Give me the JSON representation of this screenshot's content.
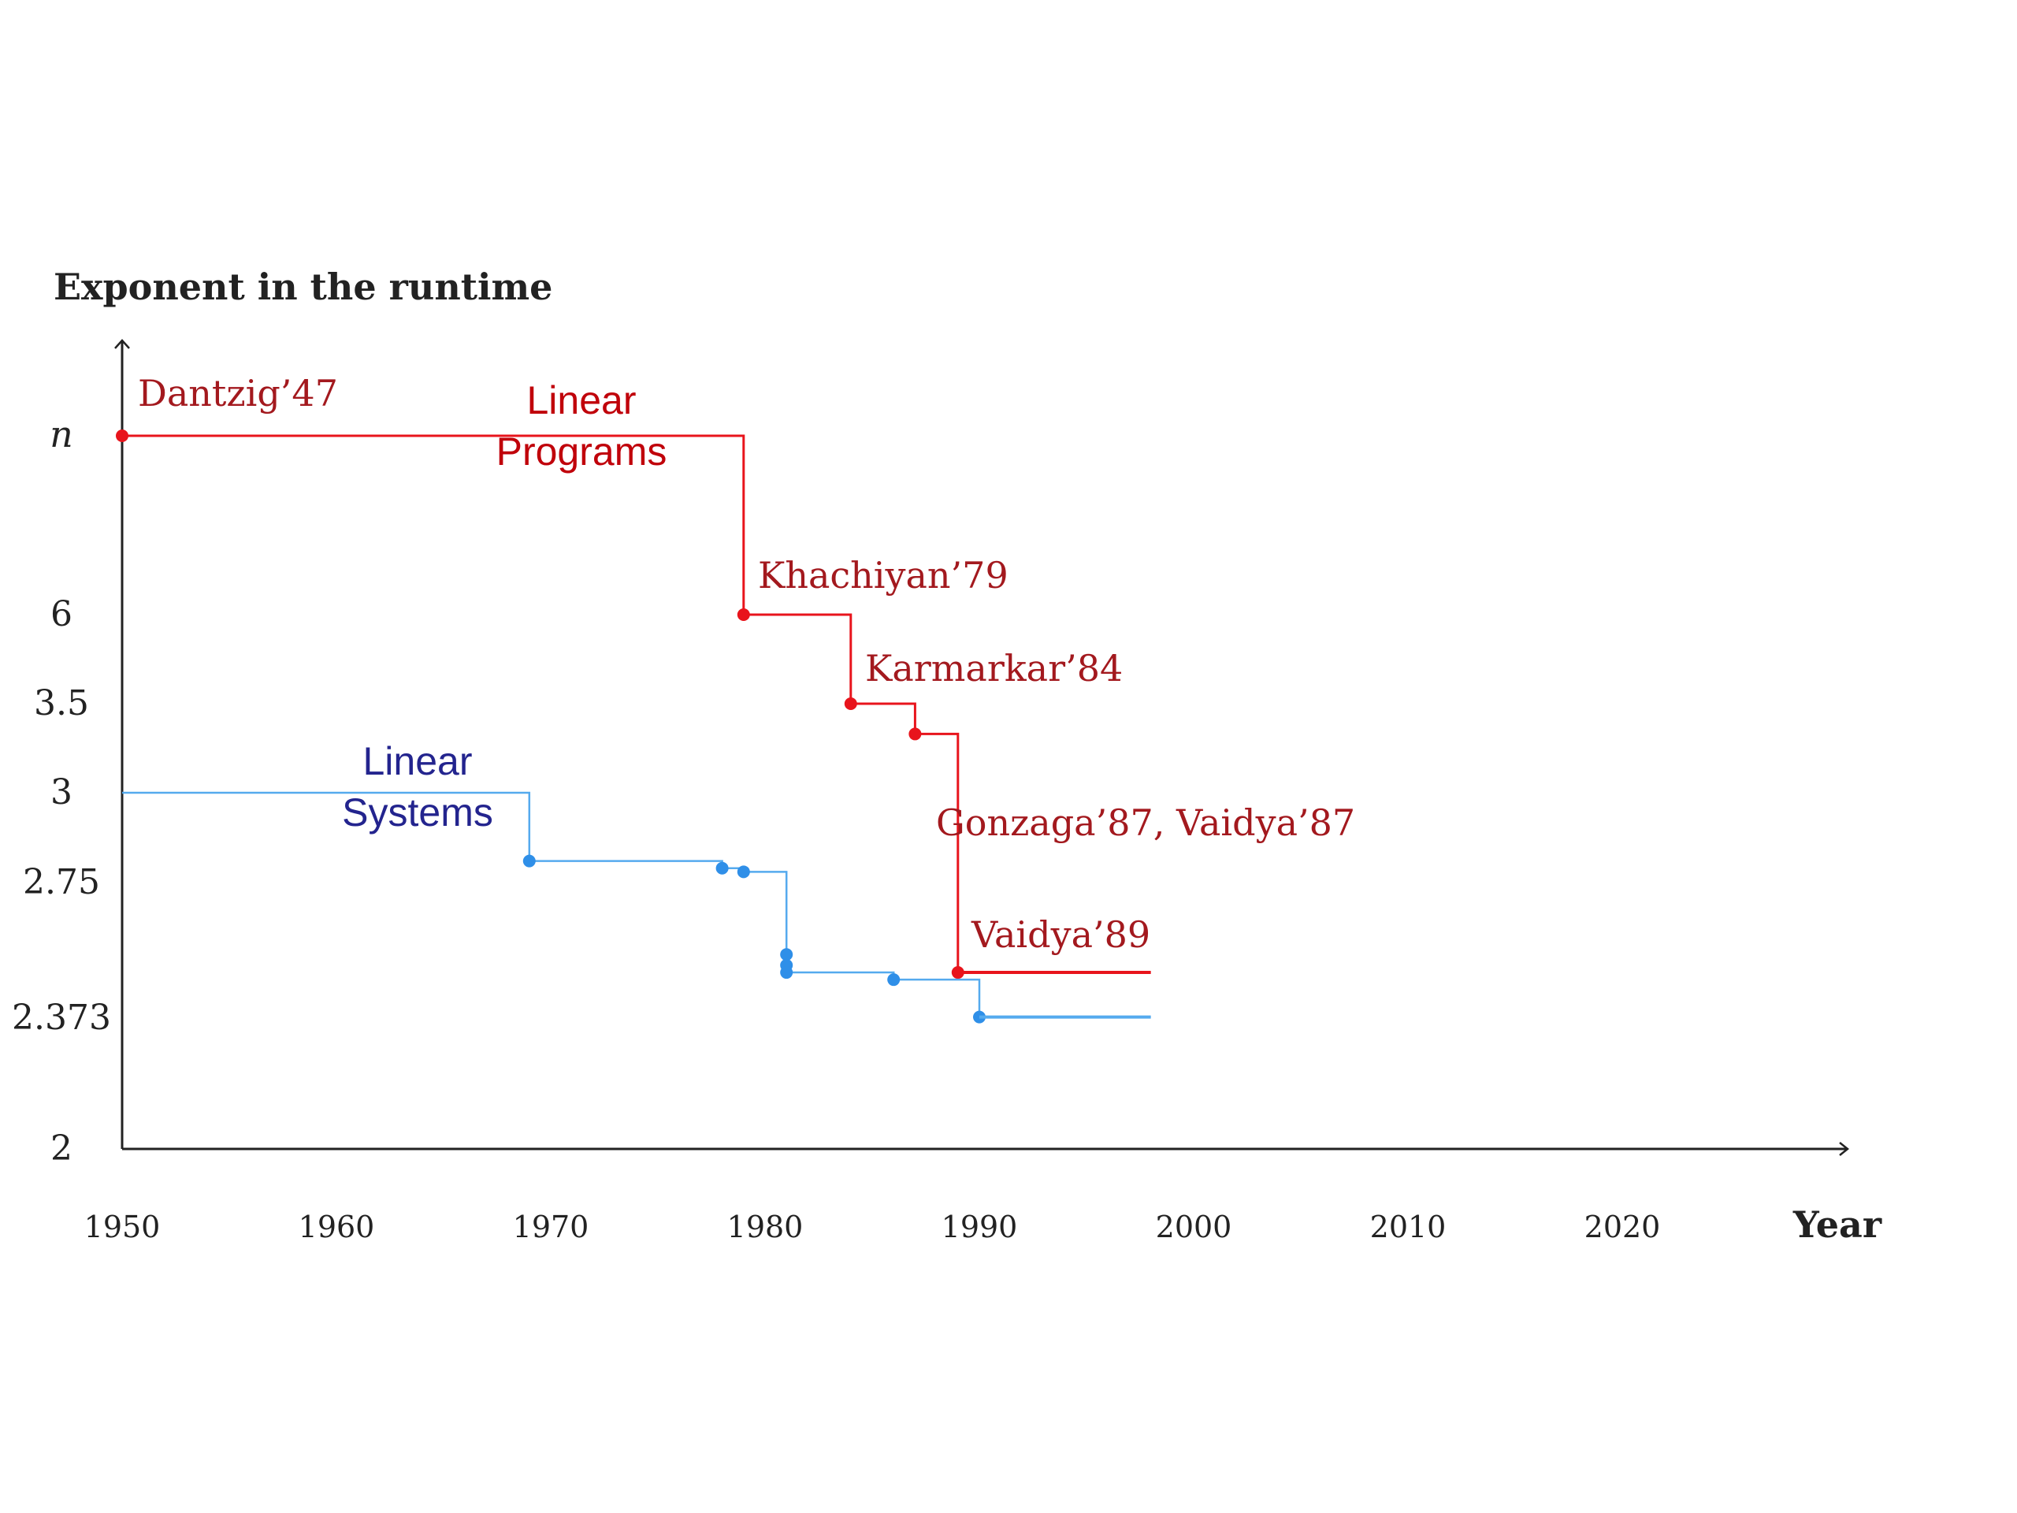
{
  "chart_data": {
    "type": "line",
    "step": true,
    "ylabel": "Exponent in the runtime",
    "xlabel": "Year",
    "x_ticks": [
      "1950",
      "1960",
      "1970",
      "1980",
      "1990",
      "2000",
      "2010",
      "2020"
    ],
    "x_range": [
      1950,
      2031
    ],
    "y_ticks": [
      "n",
      "6",
      "3.5",
      "3",
      "2.75",
      "2.373",
      "2"
    ],
    "grid": false,
    "series": [
      {
        "name": "Linear\nPrograms",
        "label_lines": [
          "Linear",
          "Programs"
        ],
        "color": "#e8141c",
        "label_color": "#c0000a",
        "end_year": 1998,
        "points": [
          {
            "year": 1947,
            "exponent": "n"
          },
          {
            "year": 1979,
            "exponent": "6"
          },
          {
            "year": 1984,
            "exponent": "3.5"
          },
          {
            "year": 1987,
            "exponent": "3.33"
          },
          {
            "year": 1989,
            "exponent": "2.5"
          }
        ]
      },
      {
        "name": "Linear\nSystems",
        "label_lines": [
          "Linear",
          "Systems"
        ],
        "color": "#55aaee",
        "marker_color": "#2f8fe8",
        "label_color": "#23248e",
        "end_year": 1998,
        "points": [
          {
            "year": 1950,
            "exponent": "3"
          },
          {
            "year": 1969,
            "exponent": "2.81"
          },
          {
            "year": 1978,
            "exponent": "2.79"
          },
          {
            "year": 1979,
            "exponent": "2.78"
          },
          {
            "year": 1981,
            "exponent": "2.55"
          },
          {
            "year": 1981,
            "exponent": "2.52"
          },
          {
            "year": 1981,
            "exponent": "2.50"
          },
          {
            "year": 1986,
            "exponent": "2.48"
          },
          {
            "year": 1990,
            "exponent": "2.376"
          }
        ]
      }
    ],
    "annotations": [
      {
        "text": "Dantzig’47",
        "year": 1947
      },
      {
        "text": "Khachiyan’79",
        "year": 1979
      },
      {
        "text": "Karmarkar’84",
        "year": 1984
      },
      {
        "text": "Gonzaga’87, Vaidya’87",
        "year": 1987
      },
      {
        "text": "Vaidya’89",
        "year": 1989
      }
    ],
    "annotation_color": "#a3191e",
    "axis_color": "#222222"
  }
}
